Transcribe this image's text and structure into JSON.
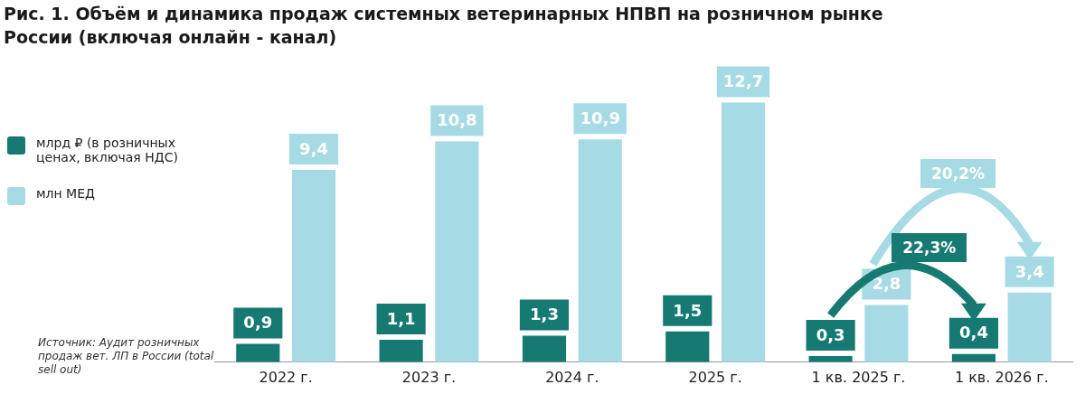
{
  "chart_data": {
    "type": "bar",
    "title": "Рис. 1. Объём и динамика продаж системных ветеринарных НПВП на розничном рынке России (включая онлайн - канал)",
    "categories": [
      "2022 г.",
      "2023 г.",
      "2024 г.",
      "2025 г.",
      "1 кв. 2025 г.",
      "1 кв. 2026 г."
    ],
    "series": [
      {
        "name": "млрд ₽ (в розничных ценах, включая НДС)",
        "color": "#167a73",
        "values": [
          0.9,
          1.1,
          1.3,
          1.5,
          0.3,
          0.4
        ],
        "value_labels": [
          "0,9",
          "1,1",
          "1,3",
          "1,5",
          "0,3",
          "0,4"
        ]
      },
      {
        "name": "млн МЕД",
        "color": "#a6dbe5",
        "values": [
          9.4,
          10.8,
          10.9,
          12.7,
          2.8,
          3.4
        ],
        "value_labels": [
          "9,4",
          "10,8",
          "10,9",
          "12,7",
          "2,8",
          "3,4"
        ]
      }
    ],
    "legend": "left",
    "grid": false,
    "annotations": [
      "22,3%",
      "20,2%",
      "Источник: Аудит розничных продаж вет. ЛП в России (total sell out)"
    ]
  }
}
